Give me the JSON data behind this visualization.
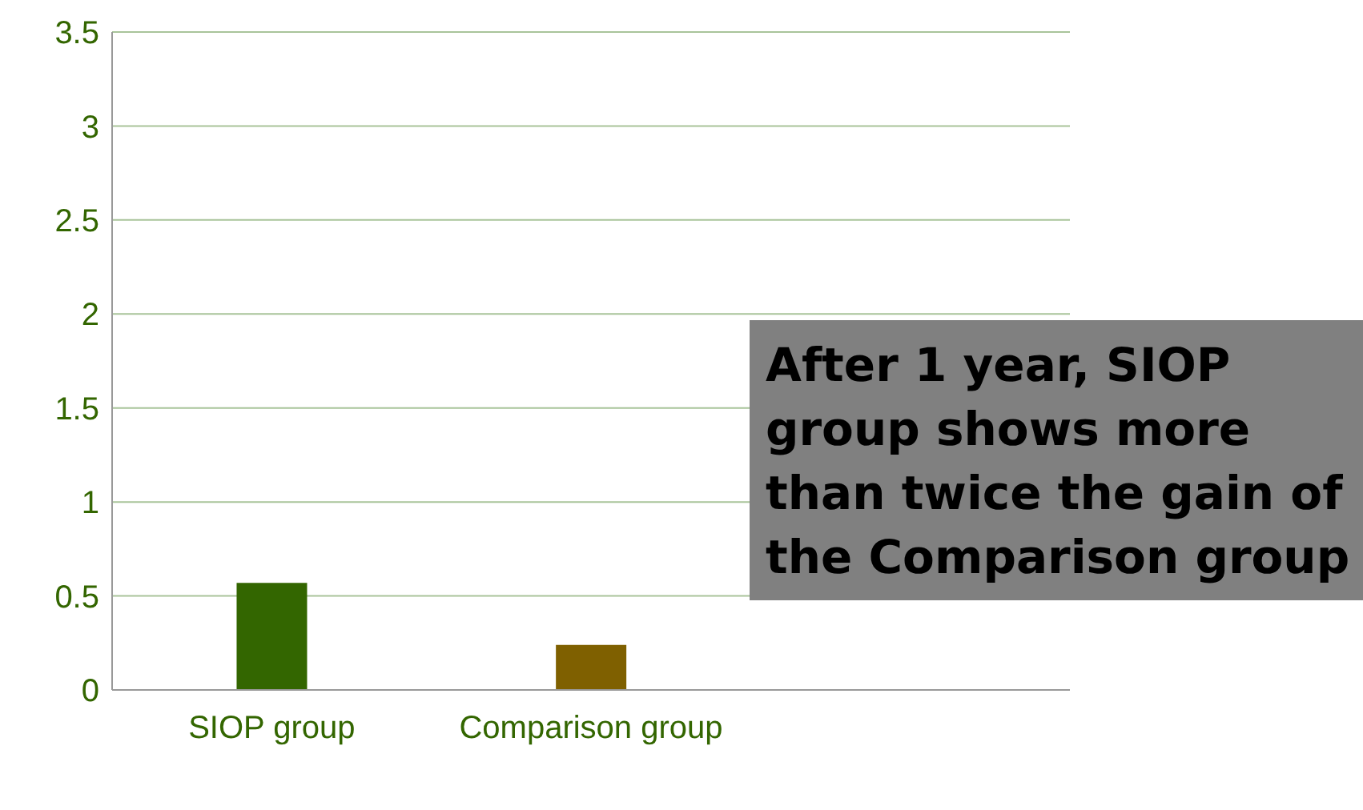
{
  "chart_data": {
    "type": "bar",
    "categories": [
      "SIOP group",
      "Comparison group",
      null
    ],
    "values": [
      0.57,
      0.24,
      null
    ],
    "colors": [
      "#336600",
      "#7f6000",
      "#336600"
    ],
    "ylim": [
      0,
      3.5
    ],
    "yticks": [
      0,
      0.5,
      1,
      1.5,
      2,
      2.5,
      3,
      3.5
    ],
    "grid": "y",
    "annotations": [
      "After 1 year, SIOP group shows more than twice the gain of the Comparison group"
    ]
  }
}
